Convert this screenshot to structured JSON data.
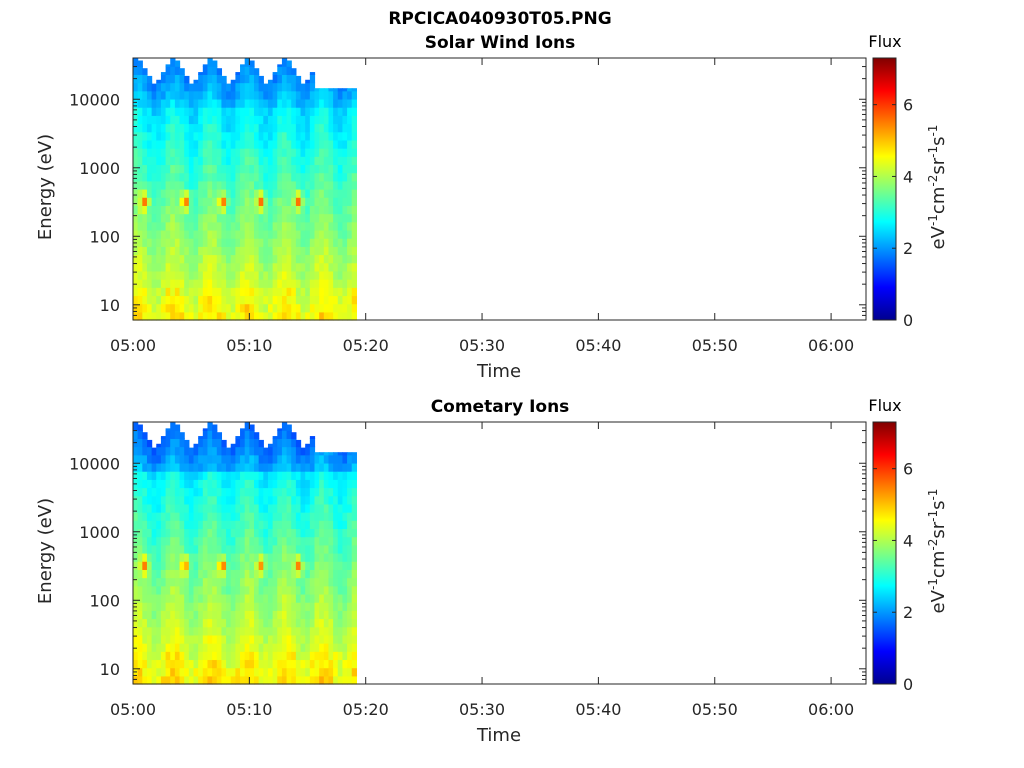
{
  "figure_title": "RPCICA040930T05.PNG",
  "chart_data": [
    {
      "type": "heatmap",
      "title": "Solar Wind Ions",
      "xlabel": "Time",
      "ylabel": "Energy (eV)",
      "yscale": "log",
      "xlim": [
        "05:00",
        "06:03"
      ],
      "ylim": [
        6,
        40000
      ],
      "x_ticks": [
        "05:00",
        "05:10",
        "05:20",
        "05:30",
        "05:40",
        "05:50",
        "06:00"
      ],
      "y_ticks": [
        "10",
        "100",
        "1000",
        "10000"
      ],
      "colorbar": {
        "title": "Flux",
        "label": "eV-1cm-2sr-1s-1",
        "range": [
          0,
          7.3
        ],
        "ticks": [
          "0",
          "2",
          "4",
          "6"
        ],
        "colormap": "jet"
      },
      "data_extent_minutes": 19,
      "sweep_cycle_minutes": 3.2,
      "peak_energy_eV": 330,
      "peak_times": [
        "05:01",
        "05:04.5",
        "05:07.7",
        "05:11",
        "05:14.2"
      ],
      "peak_flux": 5.4,
      "low_energy_flux": 4.5,
      "high_energy_flux": 2.2
    },
    {
      "type": "heatmap",
      "title": "Cometary Ions",
      "xlabel": "Time",
      "ylabel": "Energy (eV)",
      "yscale": "log",
      "xlim": [
        "05:00",
        "06:03"
      ],
      "ylim": [
        6,
        40000
      ],
      "x_ticks": [
        "05:00",
        "05:10",
        "05:20",
        "05:30",
        "05:40",
        "05:50",
        "06:00"
      ],
      "y_ticks": [
        "10",
        "100",
        "1000",
        "10000"
      ],
      "colorbar": {
        "title": "Flux",
        "label": "eV-1cm-2sr-1s-1",
        "range": [
          0,
          7.3
        ],
        "ticks": [
          "0",
          "2",
          "4",
          "6"
        ],
        "colormap": "jet"
      },
      "data_extent_minutes": 19,
      "sweep_cycle_minutes": 3.2,
      "peak_energy_eV": 330,
      "peak_times": [
        "05:01",
        "05:04.5",
        "05:07.7",
        "05:11",
        "05:14.2"
      ],
      "peak_flux": 5.2,
      "low_energy_flux": 4.6,
      "high_energy_flux": 2.0
    }
  ]
}
